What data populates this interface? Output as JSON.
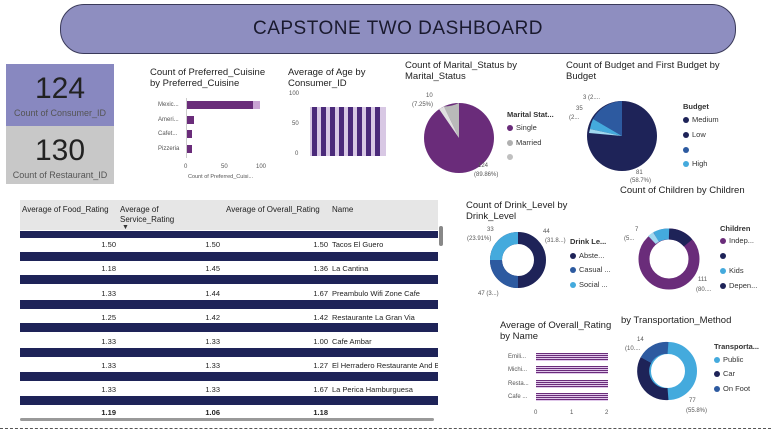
{
  "header": {
    "title": "CAPSTONE TWO DASHBOARD"
  },
  "kpis": [
    {
      "value": "124",
      "label": "Count of Consumer_ID"
    },
    {
      "value": "130",
      "label": "Count of Restaurant_ID"
    }
  ],
  "colors": {
    "purple": "#6a2c7a",
    "navy": "#1e2358",
    "blue": "#2d5aa0",
    "lightblue": "#44aadd",
    "grey": "#b0b0b0",
    "title_bg": "#8e8ec0",
    "kpi1_bg": "#8888c0"
  },
  "cuisine_chart": {
    "title_lines": [
      "Count of Preferred_Cuisine",
      "by Preferred_Cuisine"
    ],
    "categories": [
      "Mexic...",
      "Ameri...",
      "Cafet...",
      "Pizzeria"
    ],
    "x_ticks": [
      "0",
      "50",
      "100"
    ],
    "xlabel": "Count of Preferred_Cuisi..."
  },
  "age_chart": {
    "title_lines": [
      "Average of Age by",
      "Consumer_ID"
    ],
    "y_ticks": [
      "100",
      "50",
      "0"
    ]
  },
  "marital_chart": {
    "title_lines": [
      "Count of Marital_Status by",
      "Marital_Status"
    ],
    "legend_title": "Marital Stat...",
    "legend": [
      "Single",
      "Married",
      ""
    ],
    "labels": [
      {
        "top": "10",
        "bottom": "(7.25%)"
      },
      {
        "top": "124",
        "bottom": "(89.86%)"
      }
    ]
  },
  "budget_chart": {
    "title_lines": [
      "Count of Budget and First Budget by",
      "Budget"
    ],
    "legend_title": "Budget",
    "legend": [
      "Medium",
      "Low",
      "",
      "High"
    ],
    "labels": [
      {
        "text": "3 (2...."
      },
      {
        "text": "35"
      },
      {
        "text": "(2..."
      },
      {
        "text": "81"
      },
      {
        "text": "(58.7%)"
      }
    ]
  },
  "children_chart": {
    "title": "Count of Children by Children",
    "legend_title": "Children",
    "legend": [
      "Indep...",
      "",
      "Kids",
      "Depen..."
    ],
    "labels": [
      {
        "text": "7"
      },
      {
        "text": "(5..."
      },
      {
        "text": "111"
      },
      {
        "text": "(80...."
      }
    ]
  },
  "drink_chart": {
    "title_lines": [
      "Count of Drink_Level by",
      "Drink_Level"
    ],
    "legend_title": "Drink Le...",
    "legend": [
      "Abste...",
      "Casual ...",
      "Social ..."
    ],
    "labels": [
      {
        "text": "33"
      },
      {
        "text": "(23.91%)"
      },
      {
        "text": "44"
      },
      {
        "text": "(31.8...)"
      },
      {
        "text": "47 (3...)"
      }
    ]
  },
  "rating_chart": {
    "title_lines": [
      "Average of Overall_Rating",
      "by Name"
    ],
    "categories": [
      "Emili...",
      "Michi...",
      "Resta...",
      "Cafe ..."
    ],
    "x_ticks": [
      "0",
      "1",
      "2"
    ]
  },
  "transport_chart": {
    "title": "by Transportation_Method",
    "legend_title": "Transporta...",
    "legend": [
      "Public",
      "Car",
      "On Foot"
    ],
    "labels": [
      {
        "text": "14"
      },
      {
        "text": "(10...."
      },
      {
        "text": "77"
      },
      {
        "text": "(55.8%)"
      }
    ]
  },
  "table": {
    "headers": [
      "Average of Food_Rating",
      "Average of Service_Rating",
      "Average of Overall_Rating",
      "Name"
    ],
    "rows": [
      [
        "1.50",
        "1.50",
        "1.50",
        "Tacos El Guero"
      ],
      [
        "1.18",
        "1.45",
        "1.36",
        "La Cantina"
      ],
      [
        "1.33",
        "1.44",
        "1.67",
        "Preambulo Wifi Zone Cafe"
      ],
      [
        "1.25",
        "1.42",
        "1.42",
        "Restaurante La Gran Via"
      ],
      [
        "1.33",
        "1.33",
        "1.00",
        "Cafe Ambar"
      ],
      [
        "1.33",
        "1.33",
        "1.27",
        "El Herradero Restaurante And B"
      ],
      [
        "1.33",
        "1.33",
        "1.67",
        "La Perica Hamburguesa"
      ]
    ],
    "totals": [
      "1.19",
      "1.06",
      "1.18"
    ]
  }
}
